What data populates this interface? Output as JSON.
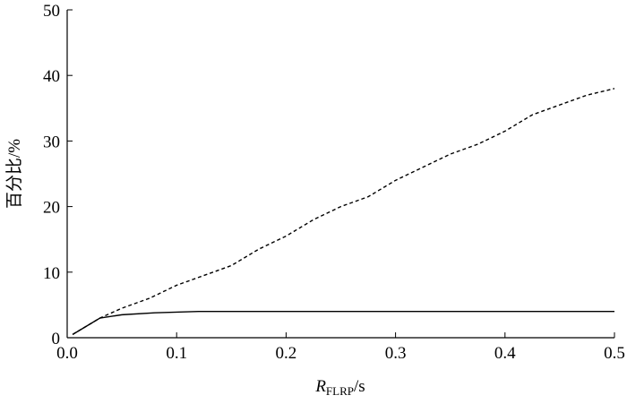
{
  "chart_data": {
    "type": "line",
    "xlabel": {
      "main": "R",
      "sub": "FLRP",
      "unit": "/s"
    },
    "ylabel": "百分比/%",
    "xlim": [
      0,
      0.5
    ],
    "xticks": [
      {
        "value": 0,
        "label": "0.0"
      },
      0.1,
      0.2,
      0.3,
      0.4,
      0.5
    ],
    "ylim": [
      0,
      50
    ],
    "yticks": [
      0,
      10,
      20,
      30,
      40,
      50
    ],
    "series": [
      {
        "color": "#000000",
        "dash": "4,3",
        "x": [
          0.005,
          0.02,
          0.03,
          0.05,
          0.075,
          0.1,
          0.125,
          0.15,
          0.175,
          0.2,
          0.225,
          0.25,
          0.275,
          0.3,
          0.325,
          0.35,
          0.375,
          0.4,
          0.425,
          0.45,
          0.475,
          0.5
        ],
        "values": [
          0.5,
          2,
          3,
          4.5,
          6,
          8,
          9.5,
          11,
          13.5,
          15.5,
          18,
          20,
          21.5,
          24,
          26,
          28,
          29.5,
          31.5,
          34,
          35.5,
          37,
          38
        ]
      },
      {
        "color": "#000000",
        "x": [
          0.005,
          0.02,
          0.03,
          0.05,
          0.08,
          0.12,
          0.5
        ],
        "values": [
          0.5,
          2,
          3,
          3.5,
          3.8,
          4,
          4
        ]
      }
    ]
  }
}
